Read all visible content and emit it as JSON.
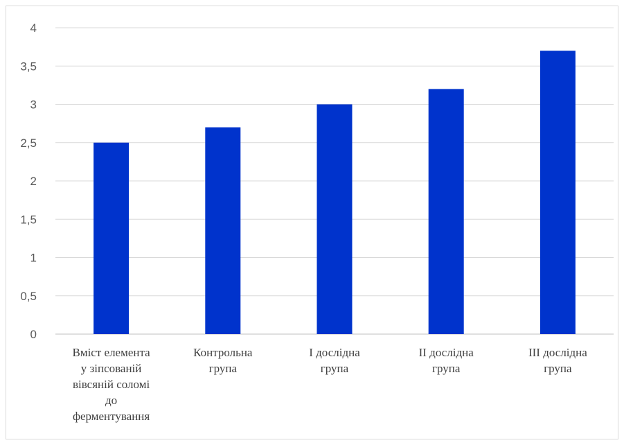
{
  "chart_data": {
    "type": "bar",
    "categories": [
      [
        "Вміст елемента",
        "у зіпсованій",
        "вівсяній соломі",
        "до",
        "ферментування"
      ],
      [
        "Контрольна",
        "група"
      ],
      [
        "І дослідна",
        "група"
      ],
      [
        "ІІ дослідна",
        "група"
      ],
      [
        "ІІІ дослідна",
        "група"
      ]
    ],
    "values": [
      2.5,
      2.7,
      3.0,
      3.2,
      3.7
    ],
    "ylim": [
      0,
      4
    ],
    "yticks": [
      "0",
      "0,5",
      "1",
      "1,5",
      "2",
      "2,5",
      "3",
      "3,5",
      "4"
    ],
    "title": "",
    "xlabel": "",
    "ylabel": "",
    "grid": true,
    "legend": "none",
    "colors": {
      "bar": "#0033cc",
      "grid": "#d9d9d9",
      "axis": "#bfbfbf"
    }
  }
}
